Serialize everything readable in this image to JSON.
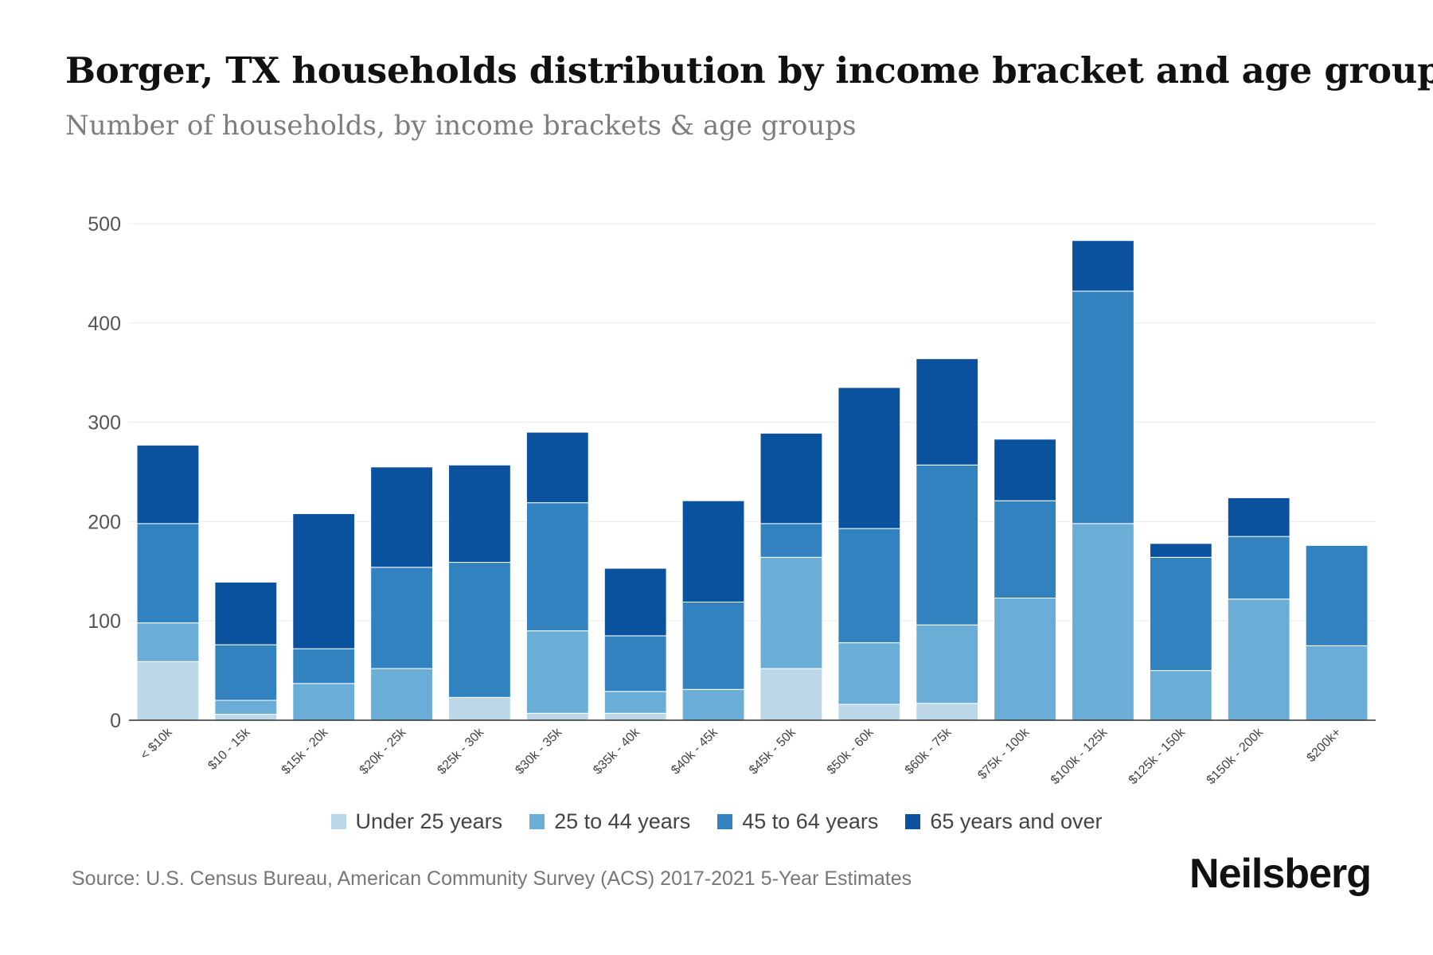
{
  "header": {
    "title": "Borger, TX households distribution by income bracket and age group",
    "subtitle": "Number of households, by income brackets & age groups"
  },
  "chart_data": {
    "type": "bar",
    "stacked": true,
    "title": "Borger, TX households distribution by income bracket and age group",
    "subtitle": "Number of households, by income brackets & age groups",
    "xlabel": "",
    "ylabel": "",
    "ylim": [
      0,
      500
    ],
    "yticks": [
      0,
      100,
      200,
      300,
      400,
      500
    ],
    "grid": true,
    "legend_position": "bottom",
    "categories": [
      "< $10k",
      "$10 - 15k",
      "$15k - 20k",
      "$20k - 25k",
      "$25k - 30k",
      "$30k - 35k",
      "$35k - 40k",
      "$40k - 45k",
      "$45k - 50k",
      "$50k - 60k",
      "$60k - 75k",
      "$75k - 100k",
      "$100k - 125k",
      "$125k - 150k",
      "$150k - 200k",
      "$200k+"
    ],
    "series": [
      {
        "name": "Under 25 years",
        "color": "#bcd8e8",
        "values": [
          59,
          6,
          0,
          0,
          23,
          7,
          7,
          0,
          52,
          16,
          17,
          0,
          0,
          0,
          0,
          0
        ]
      },
      {
        "name": "25 to 44 years",
        "color": "#6aadd6",
        "values": [
          39,
          14,
          37,
          52,
          0,
          83,
          22,
          31,
          112,
          62,
          79,
          123,
          198,
          50,
          122,
          75
        ]
      },
      {
        "name": "45 to 64 years",
        "color": "#3282bf",
        "values": [
          100,
          56,
          35,
          102,
          136,
          129,
          56,
          88,
          34,
          115,
          161,
          98,
          234,
          114,
          63,
          101
        ]
      },
      {
        "name": "65 years and over",
        "color": "#0a519e",
        "values": [
          79,
          63,
          136,
          101,
          98,
          71,
          68,
          102,
          91,
          142,
          107,
          62,
          51,
          14,
          39,
          0
        ]
      }
    ]
  },
  "footer": {
    "source": "Source: U.S. Census Bureau, American Community Survey (ACS) 2017-2021 5-Year Estimates",
    "brand": "Neilsberg"
  }
}
